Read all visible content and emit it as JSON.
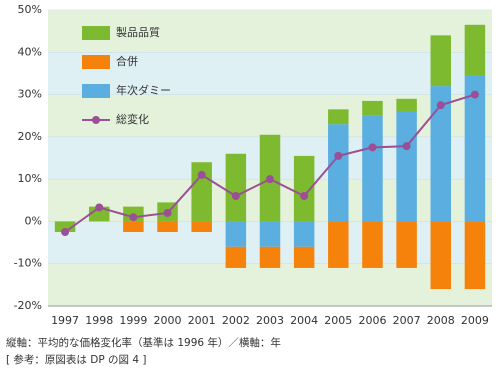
{
  "chart_data": {
    "type": "stacked_bar_line",
    "categories": [
      "1997",
      "1998",
      "1999",
      "2000",
      "2001",
      "2002",
      "2003",
      "2004",
      "2005",
      "2006",
      "2007",
      "2008",
      "2009"
    ],
    "series": [
      {
        "name": "年次ダミー",
        "color": "#5aaee0",
        "values": [
          0,
          0,
          0,
          0,
          0,
          -6,
          -6,
          -6,
          23,
          25,
          26,
          32,
          34.5
        ]
      },
      {
        "name": "合併",
        "color": "#f5820a",
        "values": [
          0,
          0,
          -2.5,
          -2.5,
          -2.5,
          -5,
          -5,
          -5,
          -11,
          -11,
          -11,
          -16,
          -16
        ]
      },
      {
        "name": "製品品質",
        "color": "#7dba2f",
        "values": [
          -2.5,
          3.5,
          3.5,
          4.5,
          14,
          16,
          20.5,
          15.5,
          3.5,
          3.5,
          3,
          12,
          12
        ]
      }
    ],
    "line": {
      "name": "総変化",
      "color": "#9b4f96",
      "values": [
        -2.5,
        3.3,
        1,
        2,
        11,
        6,
        10,
        6,
        15.5,
        17.5,
        17.8,
        27.5,
        30
      ]
    },
    "ylim": [
      -20,
      50
    ],
    "yticks": [
      {
        "value": -20,
        "label": "-20%"
      },
      {
        "value": -10,
        "label": "-10%"
      },
      {
        "value": 0,
        "label": "0%"
      },
      {
        "value": 10,
        "label": "10%"
      },
      {
        "value": 20,
        "label": "20%"
      },
      {
        "value": 30,
        "label": "30%"
      },
      {
        "value": 40,
        "label": "40%"
      },
      {
        "value": 50,
        "label": "50%"
      }
    ],
    "notes": [
      "縦軸：平均的な価格変化率（基準は 1996 年）／横軸：年",
      "[ 参考：原図表は DP の図 4 ]"
    ]
  }
}
